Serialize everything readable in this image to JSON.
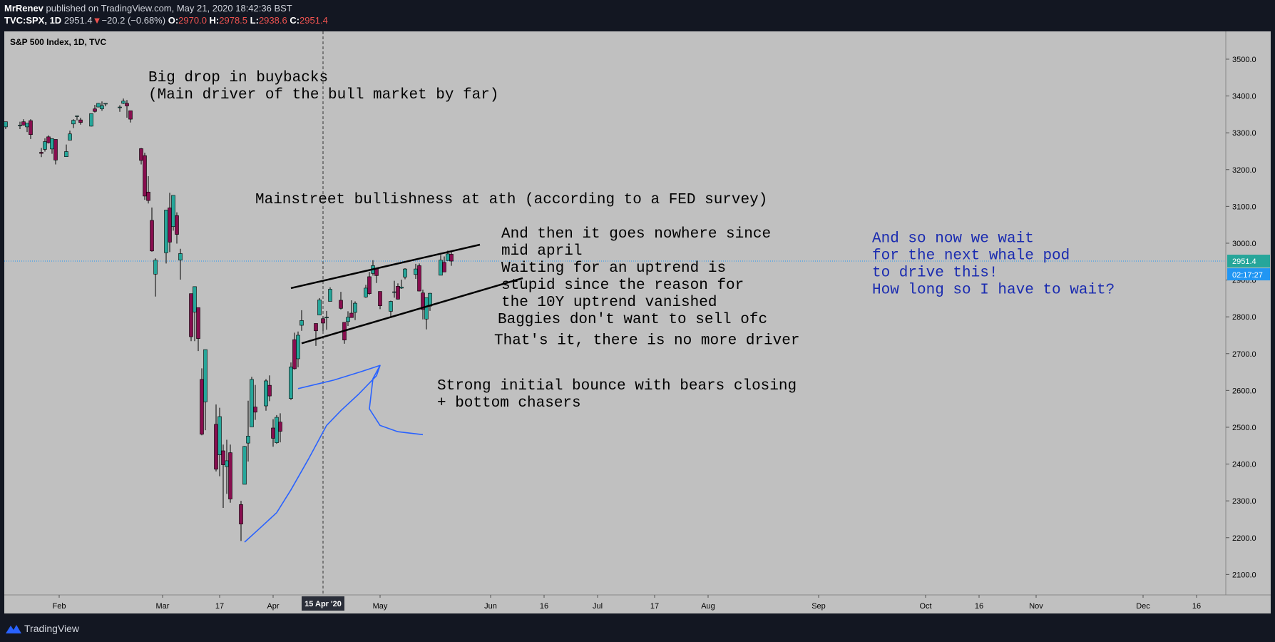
{
  "header": {
    "author": "MrRenev",
    "published": " published on TradingView.com, May 21, 2020 18:42:36 BST",
    "symbol": "TVC:SPX, 1D",
    "last": "2951.4",
    "change_arrow": "▼",
    "change": "−20.2 (−0.68%)",
    "o_label": "O:",
    "o_val": "2970.0",
    "h_label": "H:",
    "h_val": "2978.5",
    "l_label": "L:",
    "l_val": "2938.6",
    "c_label": "C:",
    "c_val": "2951.4"
  },
  "footer": {
    "brand": "TradingView"
  },
  "colors": {
    "background": "#c0c0c0",
    "up": "#26a69a",
    "down": "#880e4f",
    "annotation_blue": "#1a2bb0",
    "trendline": "#000000"
  },
  "chart_data": {
    "type": "candlestick",
    "title": "S&P 500 Index, 1D, TVC",
    "ylim": [
      2060,
      3560
    ],
    "y_ticks": [
      "3500.0",
      "3400.0",
      "3300.0",
      "3200.0",
      "3100.0",
      "3000.0",
      "2900.0",
      "2800.0",
      "2700.0",
      "2600.0",
      "2500.0",
      "2400.0",
      "2300.0",
      "2200.0",
      "2100.0"
    ],
    "x_ticks": [
      {
        "label": "Feb",
        "date": "2020-02-01"
      },
      {
        "label": "Mar",
        "date": "2020-03-01"
      },
      {
        "label": "17",
        "date": "2020-03-17"
      },
      {
        "label": "Apr",
        "date": "2020-04-01"
      },
      {
        "label": "May",
        "date": "2020-05-01"
      },
      {
        "label": "Jun",
        "date": "2020-06-01"
      },
      {
        "label": "16",
        "date": "2020-06-16"
      },
      {
        "label": "Jul",
        "date": "2020-07-01"
      },
      {
        "label": "17",
        "date": "2020-07-17"
      },
      {
        "label": "Aug",
        "date": "2020-08-01"
      },
      {
        "label": "Sep",
        "date": "2020-09-01"
      },
      {
        "label": "Oct",
        "date": "2020-10-01"
      },
      {
        "label": "16",
        "date": "2020-10-16"
      },
      {
        "label": "Nov",
        "date": "2020-11-01"
      },
      {
        "label": "Dec",
        "date": "2020-12-01"
      },
      {
        "label": "16",
        "date": "2020-12-16"
      }
    ],
    "x_range": [
      "2020-01-17",
      "2020-12-22"
    ],
    "crosshair": {
      "date": "2020-04-15",
      "label": "15 Apr '20"
    },
    "last_price": {
      "value": 2951.4,
      "label": "2951.4",
      "countdown": "02:17:27"
    },
    "candles": [
      {
        "d": "2020-01-17",
        "o": 3316,
        "h": 3330,
        "l": 3310,
        "c": 3330
      },
      {
        "d": "2020-01-21",
        "o": 3321,
        "h": 3330,
        "l": 3310,
        "c": 3321
      },
      {
        "d": "2020-01-22",
        "o": 3330,
        "h": 3337,
        "l": 3320,
        "c": 3321
      },
      {
        "d": "2020-01-23",
        "o": 3316,
        "h": 3326,
        "l": 3302,
        "c": 3326
      },
      {
        "d": "2020-01-24",
        "o": 3333,
        "h": 3337,
        "l": 3283,
        "c": 3295
      },
      {
        "d": "2020-01-27",
        "o": 3247,
        "h": 3259,
        "l": 3234,
        "c": 3244
      },
      {
        "d": "2020-01-28",
        "o": 3255,
        "h": 3285,
        "l": 3249,
        "c": 3276
      },
      {
        "d": "2020-01-29",
        "o": 3289,
        "h": 3293,
        "l": 3271,
        "c": 3273
      },
      {
        "d": "2020-01-30",
        "o": 3256,
        "h": 3285,
        "l": 3243,
        "c": 3284
      },
      {
        "d": "2020-01-31",
        "o": 3282,
        "h": 3282,
        "l": 3214,
        "c": 3226
      },
      {
        "d": "2020-02-03",
        "o": 3235,
        "h": 3268,
        "l": 3235,
        "c": 3249
      },
      {
        "d": "2020-02-04",
        "o": 3280,
        "h": 3306,
        "l": 3280,
        "c": 3297
      },
      {
        "d": "2020-02-05",
        "o": 3324,
        "h": 3337,
        "l": 3313,
        "c": 3334
      },
      {
        "d": "2020-02-06",
        "o": 3344,
        "h": 3347,
        "l": 3334,
        "c": 3346
      },
      {
        "d": "2020-02-07",
        "o": 3335,
        "h": 3341,
        "l": 3322,
        "c": 3328
      },
      {
        "d": "2020-02-10",
        "o": 3318,
        "h": 3352,
        "l": 3317,
        "c": 3352
      },
      {
        "d": "2020-02-11",
        "o": 3365,
        "h": 3376,
        "l": 3355,
        "c": 3358
      },
      {
        "d": "2020-02-12",
        "o": 3370,
        "h": 3381,
        "l": 3369,
        "c": 3380
      },
      {
        "d": "2020-02-13",
        "o": 3365,
        "h": 3385,
        "l": 3360,
        "c": 3374
      },
      {
        "d": "2020-02-14",
        "o": 3378,
        "h": 3380,
        "l": 3372,
        "c": 3380
      },
      {
        "d": "2020-02-18",
        "o": 3369,
        "h": 3375,
        "l": 3357,
        "c": 3370
      },
      {
        "d": "2020-02-19",
        "o": 3380,
        "h": 3393,
        "l": 3378,
        "c": 3386
      },
      {
        "d": "2020-02-20",
        "o": 3380,
        "h": 3389,
        "l": 3341,
        "c": 3373
      },
      {
        "d": "2020-02-21",
        "o": 3360,
        "h": 3360,
        "l": 3328,
        "c": 3337
      },
      {
        "d": "2020-02-24",
        "o": 3257,
        "h": 3259,
        "l": 3214,
        "c": 3225
      },
      {
        "d": "2020-02-25",
        "o": 3238,
        "h": 3246,
        "l": 3118,
        "c": 3128
      },
      {
        "d": "2020-02-26",
        "o": 3139,
        "h": 3182,
        "l": 3108,
        "c": 3116
      },
      {
        "d": "2020-02-27",
        "o": 3062,
        "h": 3097,
        "l": 2977,
        "c": 2979
      },
      {
        "d": "2020-02-28",
        "o": 2916,
        "h": 2959,
        "l": 2855,
        "c": 2954
      },
      {
        "d": "2020-03-02",
        "o": 2974,
        "h": 3091,
        "l": 2945,
        "c": 3090
      },
      {
        "d": "2020-03-03",
        "o": 3096,
        "h": 3137,
        "l": 2976,
        "c": 3003
      },
      {
        "d": "2020-03-04",
        "o": 3045,
        "h": 3130,
        "l": 3034,
        "c": 3130
      },
      {
        "d": "2020-03-05",
        "o": 3075,
        "h": 3084,
        "l": 2999,
        "c": 3024
      },
      {
        "d": "2020-03-06",
        "o": 2954,
        "h": 2985,
        "l": 2901,
        "c": 2972
      },
      {
        "d": "2020-03-09",
        "o": 2863,
        "h": 2863,
        "l": 2734,
        "c": 2746
      },
      {
        "d": "2020-03-10",
        "o": 2813,
        "h": 2882,
        "l": 2734,
        "c": 2882
      },
      {
        "d": "2020-03-11",
        "o": 2825,
        "h": 2825,
        "l": 2707,
        "c": 2741
      },
      {
        "d": "2020-03-12",
        "o": 2630,
        "h": 2660,
        "l": 2478,
        "c": 2481
      },
      {
        "d": "2020-03-13",
        "o": 2569,
        "h": 2711,
        "l": 2492,
        "c": 2711
      },
      {
        "d": "2020-03-16",
        "o": 2508,
        "h": 2562,
        "l": 2380,
        "c": 2386
      },
      {
        "d": "2020-03-17",
        "o": 2425,
        "h": 2553,
        "l": 2367,
        "c": 2529
      },
      {
        "d": "2020-03-18",
        "o": 2436,
        "h": 2453,
        "l": 2281,
        "c": 2398
      },
      {
        "d": "2020-03-19",
        "o": 2393,
        "h": 2466,
        "l": 2319,
        "c": 2409
      },
      {
        "d": "2020-03-20",
        "o": 2431,
        "h": 2453,
        "l": 2295,
        "c": 2305
      },
      {
        "d": "2020-03-23",
        "o": 2290,
        "h": 2300,
        "l": 2191,
        "c": 2237
      },
      {
        "d": "2020-03-24",
        "o": 2345,
        "h": 2449,
        "l": 2345,
        "c": 2448
      },
      {
        "d": "2020-03-25",
        "o": 2457,
        "h": 2572,
        "l": 2407,
        "c": 2476
      },
      {
        "d": "2020-03-26",
        "o": 2501,
        "h": 2637,
        "l": 2501,
        "c": 2630
      },
      {
        "d": "2020-03-27",
        "o": 2555,
        "h": 2615,
        "l": 2520,
        "c": 2541
      },
      {
        "d": "2020-03-30",
        "o": 2558,
        "h": 2631,
        "l": 2545,
        "c": 2626
      },
      {
        "d": "2020-03-31",
        "o": 2614,
        "h": 2641,
        "l": 2571,
        "c": 2585
      },
      {
        "d": "2020-04-01",
        "o": 2498,
        "h": 2522,
        "l": 2447,
        "c": 2470
      },
      {
        "d": "2020-04-02",
        "o": 2458,
        "h": 2533,
        "l": 2455,
        "c": 2527
      },
      {
        "d": "2020-04-03",
        "o": 2514,
        "h": 2538,
        "l": 2459,
        "c": 2489
      },
      {
        "d": "2020-04-06",
        "o": 2578,
        "h": 2676,
        "l": 2574,
        "c": 2664
      },
      {
        "d": "2020-04-07",
        "o": 2738,
        "h": 2757,
        "l": 2657,
        "c": 2659
      },
      {
        "d": "2020-04-08",
        "o": 2686,
        "h": 2760,
        "l": 2663,
        "c": 2750
      },
      {
        "d": "2020-04-09",
        "o": 2777,
        "h": 2818,
        "l": 2762,
        "c": 2790
      },
      {
        "d": "2020-04-13",
        "o": 2782,
        "h": 2782,
        "l": 2721,
        "c": 2762
      },
      {
        "d": "2020-04-14",
        "o": 2805,
        "h": 2851,
        "l": 2805,
        "c": 2846
      },
      {
        "d": "2020-04-15",
        "o": 2795,
        "h": 2801,
        "l": 2761,
        "c": 2783
      },
      {
        "d": "2020-04-16",
        "o": 2799,
        "h": 2816,
        "l": 2765,
        "c": 2799
      },
      {
        "d": "2020-04-17",
        "o": 2842,
        "h": 2880,
        "l": 2842,
        "c": 2875
      },
      {
        "d": "2020-04-20",
        "o": 2845,
        "h": 2868,
        "l": 2820,
        "c": 2823
      },
      {
        "d": "2020-04-21",
        "o": 2785,
        "h": 2785,
        "l": 2727,
        "c": 2737
      },
      {
        "d": "2020-04-22",
        "o": 2787,
        "h": 2815,
        "l": 2775,
        "c": 2799
      },
      {
        "d": "2020-04-23",
        "o": 2810,
        "h": 2845,
        "l": 2798,
        "c": 2798
      },
      {
        "d": "2020-04-24",
        "o": 2812,
        "h": 2842,
        "l": 2791,
        "c": 2837
      },
      {
        "d": "2020-04-27",
        "o": 2854,
        "h": 2887,
        "l": 2852,
        "c": 2878
      },
      {
        "d": "2020-04-28",
        "o": 2909,
        "h": 2922,
        "l": 2860,
        "c": 2863
      },
      {
        "d": "2020-04-29",
        "o": 2918,
        "h": 2954,
        "l": 2912,
        "c": 2939
      },
      {
        "d": "2020-04-30",
        "o": 2930,
        "h": 2930,
        "l": 2892,
        "c": 2912
      },
      {
        "d": "2020-05-01",
        "o": 2869,
        "h": 2869,
        "l": 2821,
        "c": 2830
      },
      {
        "d": "2020-05-04",
        "o": 2815,
        "h": 2844,
        "l": 2797,
        "c": 2842
      },
      {
        "d": "2020-05-05",
        "o": 2868,
        "h": 2898,
        "l": 2852,
        "c": 2868
      },
      {
        "d": "2020-05-06",
        "o": 2883,
        "h": 2891,
        "l": 2847,
        "c": 2848
      },
      {
        "d": "2020-05-07",
        "o": 2878,
        "h": 2901,
        "l": 2876,
        "c": 2881
      },
      {
        "d": "2020-05-08",
        "o": 2908,
        "h": 2932,
        "l": 2902,
        "c": 2930
      },
      {
        "d": "2020-05-11",
        "o": 2915,
        "h": 2944,
        "l": 2903,
        "c": 2930
      },
      {
        "d": "2020-05-12",
        "o": 2939,
        "h": 2945,
        "l": 2869,
        "c": 2870
      },
      {
        "d": "2020-05-13",
        "o": 2865,
        "h": 2874,
        "l": 2793,
        "c": 2820
      },
      {
        "d": "2020-05-14",
        "o": 2794,
        "h": 2852,
        "l": 2766,
        "c": 2852
      },
      {
        "d": "2020-05-15",
        "o": 2829,
        "h": 2865,
        "l": 2816,
        "c": 2864
      },
      {
        "d": "2020-05-18",
        "o": 2913,
        "h": 2968,
        "l": 2913,
        "c": 2954
      },
      {
        "d": "2020-05-19",
        "o": 2948,
        "h": 2964,
        "l": 2922,
        "c": 2922
      },
      {
        "d": "2020-05-20",
        "o": 2953,
        "h": 2980,
        "l": 2953,
        "c": 2971
      },
      {
        "d": "2020-05-21",
        "o": 2970,
        "h": 2978.5,
        "l": 2938.6,
        "c": 2951.4
      }
    ],
    "trendlines": [
      {
        "from": {
          "d": "2020-04-06",
          "v": 2878
        },
        "to": {
          "d": "2020-05-29",
          "v": 2996
        }
      },
      {
        "from": {
          "d": "2020-04-09",
          "v": 2728
        },
        "to": {
          "d": "2020-06-10",
          "v": 2905
        }
      }
    ],
    "annotations": [
      {
        "id": "buybacks",
        "lines": [
          "Big drop in buybacks",
          "(Main driver of the bull market by far)"
        ],
        "d": "2020-02-26",
        "v": 3440,
        "color": "#000000",
        "size": 21
      },
      {
        "id": "mainstreet",
        "lines": [
          "Mainstreet bullishness at ath (according to a FED survey)"
        ],
        "d": "2020-03-27",
        "v": 3108,
        "color": "#000000",
        "size": 21
      },
      {
        "id": "nowhere",
        "lines": [
          "And then it goes nowhere since",
          "mid april",
          "Waiting for an uptrend is",
          "stupid since the reason for",
          "the 10Y uptrend vanished"
        ],
        "d": "2020-06-04",
        "v": 3015,
        "color": "#000000",
        "size": 21
      },
      {
        "id": "baggies",
        "lines": [
          "Baggies don't want to sell ofc"
        ],
        "d": "2020-06-03",
        "v": 2783,
        "color": "#000000",
        "size": 21
      },
      {
        "id": "driver",
        "lines": [
          "That's it, there is no more driver"
        ],
        "d": "2020-06-02",
        "v": 2726,
        "color": "#000000",
        "size": 21
      },
      {
        "id": "bounce",
        "lines": [
          "Strong initial bounce with bears closing",
          "+ bottom chasers"
        ],
        "d": "2020-05-17",
        "v": 2603,
        "color": "#000000",
        "size": 21
      },
      {
        "id": "whale",
        "lines": [
          "And so now we wait",
          "for the next whale pod",
          "to drive this!",
          "How long so I have to wait?"
        ],
        "d": "2020-09-16",
        "v": 3003,
        "color": "#1a2bb0",
        "size": 21
      }
    ],
    "freehand": [
      {
        "d": "2020-03-24",
        "v": 2188
      },
      {
        "d": "2020-03-29",
        "v": 2232
      },
      {
        "d": "2020-04-02",
        "v": 2268
      },
      {
        "d": "2020-04-06",
        "v": 2330
      },
      {
        "d": "2020-04-11",
        "v": 2415
      },
      {
        "d": "2020-04-16",
        "v": 2505
      },
      {
        "d": "2020-04-20",
        "v": 2545
      },
      {
        "d": "2020-04-25",
        "v": 2590
      },
      {
        "d": "2020-04-30",
        "v": 2640
      },
      {
        "d": "2020-05-01",
        "v": 2668
      },
      {
        "d": "2020-04-29",
        "v": 2632
      },
      {
        "d": "2020-04-28",
        "v": 2550
      },
      {
        "d": "2020-05-01",
        "v": 2505
      },
      {
        "d": "2020-05-06",
        "v": 2488
      },
      {
        "d": "2020-05-13",
        "v": 2480
      }
    ],
    "freehand2": [
      {
        "d": "2020-04-08",
        "v": 2605
      },
      {
        "d": "2020-04-18",
        "v": 2628
      },
      {
        "d": "2020-04-26",
        "v": 2652
      },
      {
        "d": "2020-05-01",
        "v": 2668
      }
    ]
  }
}
